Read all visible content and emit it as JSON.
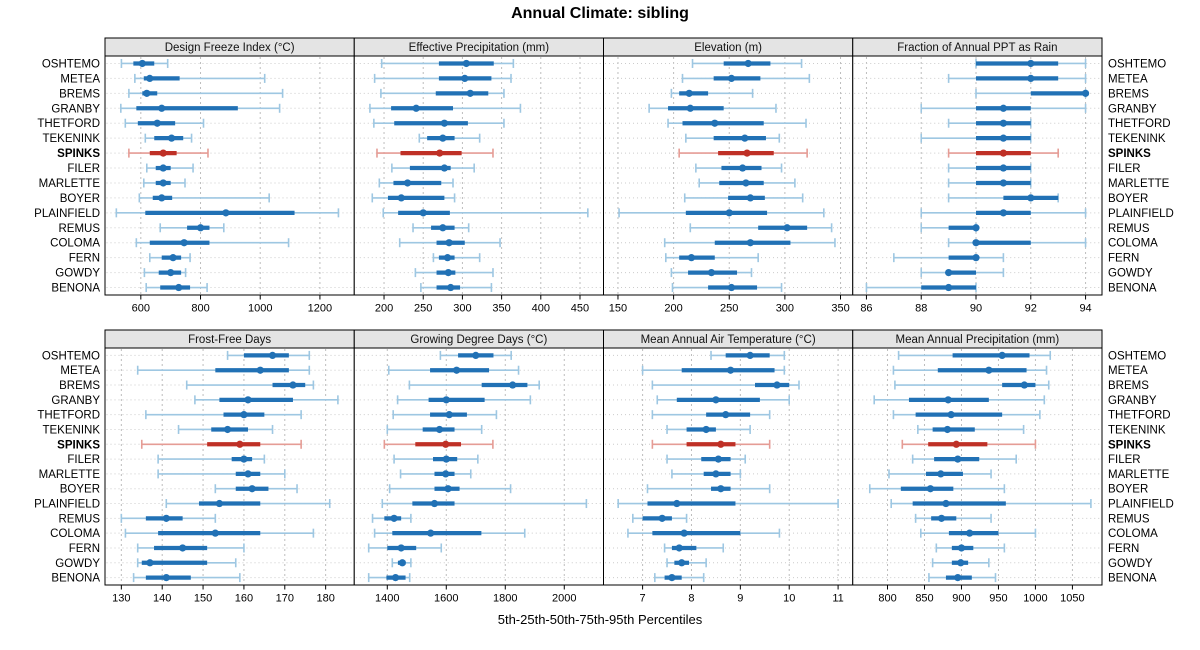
{
  "title": "Annual Climate: sibling",
  "caption": "5th-25th-50th-75th-95th Percentiles",
  "highlight": "SPINKS",
  "series_labels": [
    "OSHTEMO",
    "METEA",
    "BREMS",
    "GRANBY",
    "THETFORD",
    "TEKENINK",
    "SPINKS",
    "FILER",
    "MARLETTE",
    "BOYER",
    "PLAINFIELD",
    "REMUS",
    "COLOMA",
    "FERN",
    "GOWDY",
    "BENONA"
  ],
  "percentile_order": [
    "p5",
    "p25",
    "p50",
    "p75",
    "p95"
  ],
  "colors": {
    "blue": "#2171b5",
    "blue_light": "#9ec7e2",
    "red": "#bf3026",
    "red_light": "#e59c95",
    "strip_bg": "#e4e4e4",
    "panel_border": "#000000",
    "gridline": "#bdbdbd",
    "row_guide": "#cccccc",
    "tick_text": "#000000"
  },
  "chart_data": [
    {
      "type": "dot-whisker",
      "title": "Design Freeze Index (°C)",
      "xlim": [
        480,
        1315
      ],
      "ticks": [
        600,
        800,
        1000,
        1200
      ],
      "values": [
        [
          535,
          575,
          605,
          645,
          690
        ],
        [
          580,
          610,
          630,
          730,
          1015
        ],
        [
          560,
          605,
          620,
          655,
          1075
        ],
        [
          533,
          585,
          670,
          925,
          1065
        ],
        [
          548,
          590,
          655,
          715,
          810
        ],
        [
          615,
          645,
          703,
          742,
          770
        ],
        [
          560,
          630,
          675,
          720,
          825
        ],
        [
          620,
          650,
          675,
          700,
          775
        ],
        [
          610,
          650,
          675,
          700,
          748
        ],
        [
          595,
          640,
          670,
          705,
          1030
        ],
        [
          518,
          615,
          885,
          1115,
          1262
        ],
        [
          665,
          755,
          800,
          830,
          878
        ],
        [
          585,
          630,
          745,
          830,
          1095
        ],
        [
          630,
          670,
          708,
          735,
          765
        ],
        [
          612,
          660,
          700,
          735,
          750
        ],
        [
          618,
          665,
          727,
          765,
          822
        ]
      ]
    },
    {
      "type": "dot-whisker",
      "title": "Effective Precipitation (mm)",
      "xlim": [
        162,
        480
      ],
      "ticks": [
        200,
        250,
        300,
        350,
        400,
        450
      ],
      "values": [
        [
          197,
          270,
          305,
          340,
          365
        ],
        [
          188,
          270,
          303,
          337,
          362
        ],
        [
          196,
          266,
          310,
          333,
          353
        ],
        [
          182,
          209,
          241,
          288,
          374
        ],
        [
          187,
          213,
          277,
          307,
          353
        ],
        [
          245,
          255,
          275,
          290,
          322
        ],
        [
          191,
          221,
          271,
          299,
          339
        ],
        [
          210,
          233,
          277,
          285,
          315
        ],
        [
          194,
          212,
          230,
          273,
          288
        ],
        [
          185,
          205,
          222,
          277,
          290
        ],
        [
          199,
          218,
          250,
          284,
          460
        ],
        [
          237,
          260,
          275,
          290,
          308
        ],
        [
          220,
          267,
          283,
          303,
          348
        ],
        [
          263,
          270,
          281,
          290,
          322
        ],
        [
          240,
          267,
          282,
          291,
          339
        ],
        [
          247,
          267,
          285,
          297,
          337
        ]
      ]
    },
    {
      "type": "dot-whisker",
      "title": "Elevation (m)",
      "xlim": [
        137,
        361
      ],
      "ticks": [
        150,
        200,
        250,
        300,
        350
      ],
      "values": [
        [
          217,
          245,
          267,
          287,
          315
        ],
        [
          208,
          236,
          252,
          278,
          322
        ],
        [
          198,
          205,
          214,
          231,
          271
        ],
        [
          178,
          195,
          215,
          245,
          292
        ],
        [
          195,
          208,
          237,
          281,
          319
        ],
        [
          211,
          236,
          264,
          283,
          295
        ],
        [
          205,
          240,
          266,
          290,
          320
        ],
        [
          220,
          243,
          262,
          279,
          297
        ],
        [
          223,
          241,
          265,
          281,
          309
        ],
        [
          210,
          249,
          269,
          282,
          316
        ],
        [
          151,
          211,
          250,
          284,
          335
        ],
        [
          215,
          276,
          302,
          320,
          342
        ],
        [
          192,
          237,
          269,
          305,
          345
        ],
        [
          193,
          205,
          216,
          237,
          276
        ],
        [
          198,
          213,
          234,
          257,
          270
        ],
        [
          199,
          231,
          252,
          275,
          297
        ]
      ]
    },
    {
      "type": "dot-whisker",
      "title": "Fraction of Annual PPT as Rain",
      "xlim": [
        85.5,
        94.6
      ],
      "ticks": [
        86,
        88,
        90,
        92,
        94
      ],
      "values": [
        [
          90,
          90,
          92,
          93,
          94
        ],
        [
          89,
          90,
          92,
          93,
          94
        ],
        [
          90,
          92,
          94,
          94,
          94
        ],
        [
          88,
          90,
          91,
          92,
          94
        ],
        [
          89,
          90,
          91,
          92,
          92
        ],
        [
          88,
          90,
          91,
          92,
          92
        ],
        [
          89,
          90,
          91,
          92,
          93
        ],
        [
          89,
          90,
          91,
          92,
          92
        ],
        [
          89,
          90,
          91,
          92,
          92
        ],
        [
          89,
          91,
          92,
          93,
          93
        ],
        [
          88,
          90,
          91,
          92,
          94
        ],
        [
          88,
          89,
          90,
          90,
          90
        ],
        [
          89,
          90,
          90,
          92,
          94
        ],
        [
          87,
          89,
          90,
          90,
          91
        ],
        [
          88,
          89,
          89,
          90,
          91
        ],
        [
          86,
          88,
          89,
          90,
          90
        ]
      ]
    },
    {
      "type": "dot-whisker",
      "title": "Frost-Free Days",
      "xlim": [
        126,
        187
      ],
      "ticks": [
        130,
        140,
        150,
        160,
        170,
        180
      ],
      "values": [
        [
          156,
          160,
          167,
          171,
          176
        ],
        [
          134,
          153,
          164,
          171,
          176
        ],
        [
          146,
          167,
          172,
          175,
          177
        ],
        [
          148,
          154,
          161,
          172,
          183
        ],
        [
          136,
          155,
          160,
          165,
          174
        ],
        [
          144,
          152,
          156,
          161,
          167
        ],
        [
          135,
          151,
          159,
          164,
          174
        ],
        [
          139,
          157,
          160,
          162,
          165
        ],
        [
          139,
          158,
          161,
          164,
          170
        ],
        [
          153,
          158,
          162,
          166,
          173
        ],
        [
          141,
          149,
          154,
          164,
          181
        ],
        [
          130,
          136,
          141,
          145,
          153
        ],
        [
          131,
          139,
          153,
          164,
          177
        ],
        [
          134,
          138,
          145,
          151,
          160
        ],
        [
          134,
          135,
          137,
          151,
          158
        ],
        [
          133,
          136,
          141,
          147,
          159
        ]
      ]
    },
    {
      "type": "dot-whisker",
      "title": "Growing Degree Days (°C)",
      "xlim": [
        1288,
        2133
      ],
      "ticks": [
        1400,
        1600,
        1800,
        2000
      ],
      "values": [
        [
          1580,
          1640,
          1700,
          1760,
          1820
        ],
        [
          1405,
          1545,
          1635,
          1745,
          1845
        ],
        [
          1475,
          1720,
          1825,
          1875,
          1915
        ],
        [
          1435,
          1540,
          1600,
          1730,
          1885
        ],
        [
          1420,
          1545,
          1610,
          1670,
          1770
        ],
        [
          1400,
          1520,
          1577,
          1628,
          1720
        ],
        [
          1390,
          1495,
          1598,
          1650,
          1758
        ],
        [
          1423,
          1555,
          1600,
          1637,
          1707
        ],
        [
          1445,
          1560,
          1598,
          1628,
          1683
        ],
        [
          1408,
          1560,
          1606,
          1645,
          1818
        ],
        [
          1383,
          1485,
          1560,
          1628,
          2075
        ],
        [
          1350,
          1390,
          1423,
          1447,
          1480
        ],
        [
          1357,
          1417,
          1547,
          1719,
          1866
        ],
        [
          1337,
          1400,
          1447,
          1498,
          1583
        ],
        [
          1417,
          1436,
          1451,
          1462,
          1480
        ],
        [
          1337,
          1397,
          1428,
          1462,
          1476
        ]
      ]
    },
    {
      "type": "dot-whisker",
      "title": "Mean Annual Air Temperature (°C)",
      "xlim": [
        6.2,
        11.3
      ],
      "ticks": [
        7,
        8,
        9,
        10,
        11
      ],
      "values": [
        [
          8.4,
          8.7,
          9.2,
          9.6,
          9.9
        ],
        [
          7.0,
          7.8,
          8.8,
          9.7,
          9.9
        ],
        [
          7.2,
          9.3,
          9.75,
          10.0,
          10.2
        ],
        [
          7.3,
          7.7,
          8.5,
          9.4,
          10.0
        ],
        [
          7.2,
          8.3,
          8.7,
          9.2,
          9.6
        ],
        [
          7.5,
          7.9,
          8.3,
          8.5,
          9.2
        ],
        [
          7.2,
          7.9,
          8.6,
          8.9,
          9.6
        ],
        [
          7.5,
          8.2,
          8.55,
          8.8,
          9.1
        ],
        [
          7.6,
          8.25,
          8.5,
          8.8,
          9.0
        ],
        [
          7.1,
          8.4,
          8.6,
          8.8,
          9.6
        ],
        [
          6.5,
          7.1,
          7.7,
          8.9,
          11.0
        ],
        [
          6.8,
          7.0,
          7.4,
          7.6,
          7.9
        ],
        [
          6.7,
          7.2,
          7.85,
          9.0,
          9.8
        ],
        [
          7.45,
          7.6,
          7.75,
          8.1,
          8.65
        ],
        [
          7.5,
          7.65,
          7.8,
          7.95,
          8.3
        ],
        [
          7.25,
          7.45,
          7.6,
          7.8,
          8.25
        ]
      ]
    },
    {
      "type": "dot-whisker",
      "title": "Mean Annual Precipitation (mm)",
      "xlim": [
        753,
        1090
      ],
      "ticks": [
        800,
        850,
        900,
        950,
        1000,
        1050
      ],
      "values": [
        [
          815,
          888,
          955,
          992,
          1020
        ],
        [
          808,
          868,
          937,
          988,
          1015
        ],
        [
          810,
          955,
          985,
          1000,
          1018
        ],
        [
          782,
          829,
          882,
          937,
          1012
        ],
        [
          808,
          838,
          886,
          955,
          1006
        ],
        [
          841,
          861,
          881,
          918,
          984
        ],
        [
          820,
          855,
          893,
          935,
          1000
        ],
        [
          834,
          863,
          895,
          924,
          974
        ],
        [
          802,
          852,
          872,
          902,
          940
        ],
        [
          776,
          818,
          858,
          889,
          958
        ],
        [
          805,
          834,
          879,
          960,
          1075
        ],
        [
          838,
          859,
          873,
          893,
          940
        ],
        [
          845,
          883,
          911,
          950,
          1000
        ],
        [
          866,
          887,
          900,
          916,
          958
        ],
        [
          861,
          887,
          899,
          909,
          937
        ],
        [
          856,
          879,
          895,
          914,
          946
        ]
      ]
    }
  ]
}
